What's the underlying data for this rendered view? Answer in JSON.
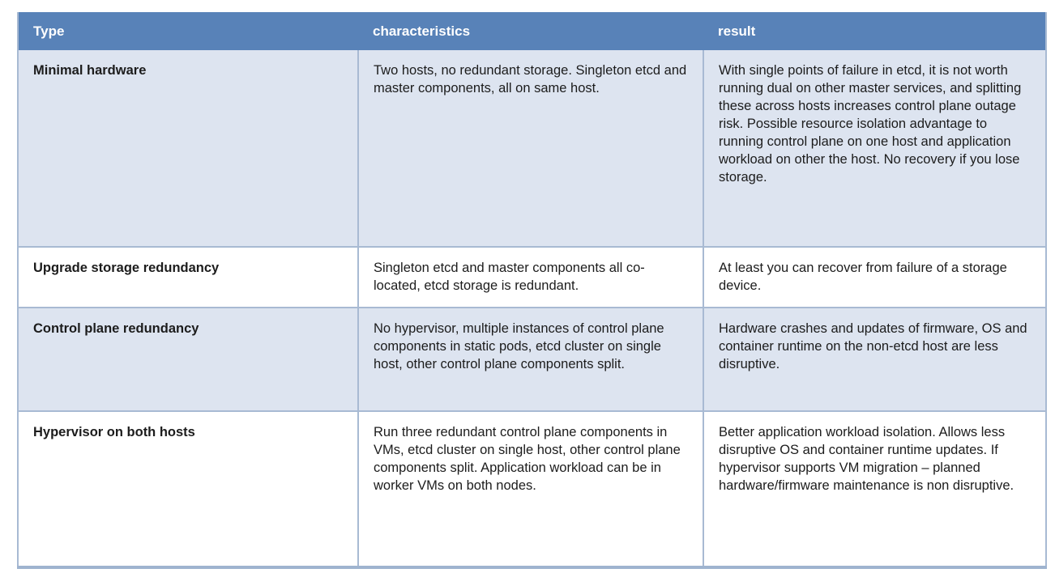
{
  "table": {
    "headers": [
      "Type",
      "characteristics",
      "result"
    ],
    "rows": [
      {
        "type": "Minimal hardware",
        "characteristics": "Two hosts, no redundant storage. Singleton etcd and master components, all on same host.",
        "result": "With single points of failure in etcd, it is not worth running dual on other master services, and splitting these across hosts increases control plane outage risk. Possible resource isolation advantage to running control plane on one host and application workload on other the host. No recovery if you lose storage."
      },
      {
        "type": "Upgrade storage redundancy",
        "characteristics": "Singleton etcd and master components all co-located, etcd storage is redundant.",
        "result": "At least you can recover from failure of a storage device."
      },
      {
        "type": "Control plane redundancy",
        "characteristics": "No hypervisor, multiple instances of control plane components in static pods, etcd cluster on single host, other control plane components split.",
        "result": "Hardware crashes and updates of firmware, OS and container runtime on the non-etcd host are less disruptive."
      },
      {
        "type": "Hypervisor on both hosts",
        "characteristics": "Run three redundant control plane components in VMs, etcd cluster on single host, other control plane components split. Application workload can be in worker VMs on both nodes.",
        "result": "Better application workload isolation. Allows less disruptive OS and container runtime updates. If hypervisor supports VM migration – planned hardware/firmware maintenance is non disruptive."
      }
    ]
  },
  "colors": {
    "header_bg": "#5882b8",
    "header_text": "#ffffff",
    "alt_row_bg": "#dde4f0",
    "row_bg": "#ffffff",
    "cell_border": "#a8bad3",
    "outer_bottom_border": "#9fb4cf",
    "body_text": "#1c1c1c"
  }
}
